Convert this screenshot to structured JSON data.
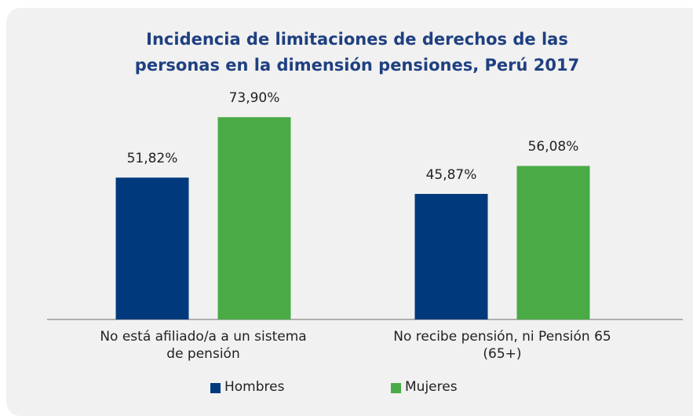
{
  "chart_data": {
    "type": "bar",
    "title": "Incidencia de limitaciones de derechos de las personas en la dimensión pensiones, Perú 2017",
    "categories": [
      "No está afiliado/a a un sistema de pensión",
      "No recibe pensión, ni Pensión 65 (65+)"
    ],
    "series": [
      {
        "name": "Hombres",
        "color": "#003a7d",
        "values": [
          51.82,
          45.87
        ],
        "value_labels": [
          "51,82%",
          "45,87%"
        ]
      },
      {
        "name": "Mujeres",
        "color": "#4aab46",
        "values": [
          73.9,
          56.08
        ],
        "value_labels": [
          "73,90%",
          "56,08%"
        ]
      }
    ],
    "ylim": [
      0,
      80
    ],
    "legend": "bottom"
  }
}
